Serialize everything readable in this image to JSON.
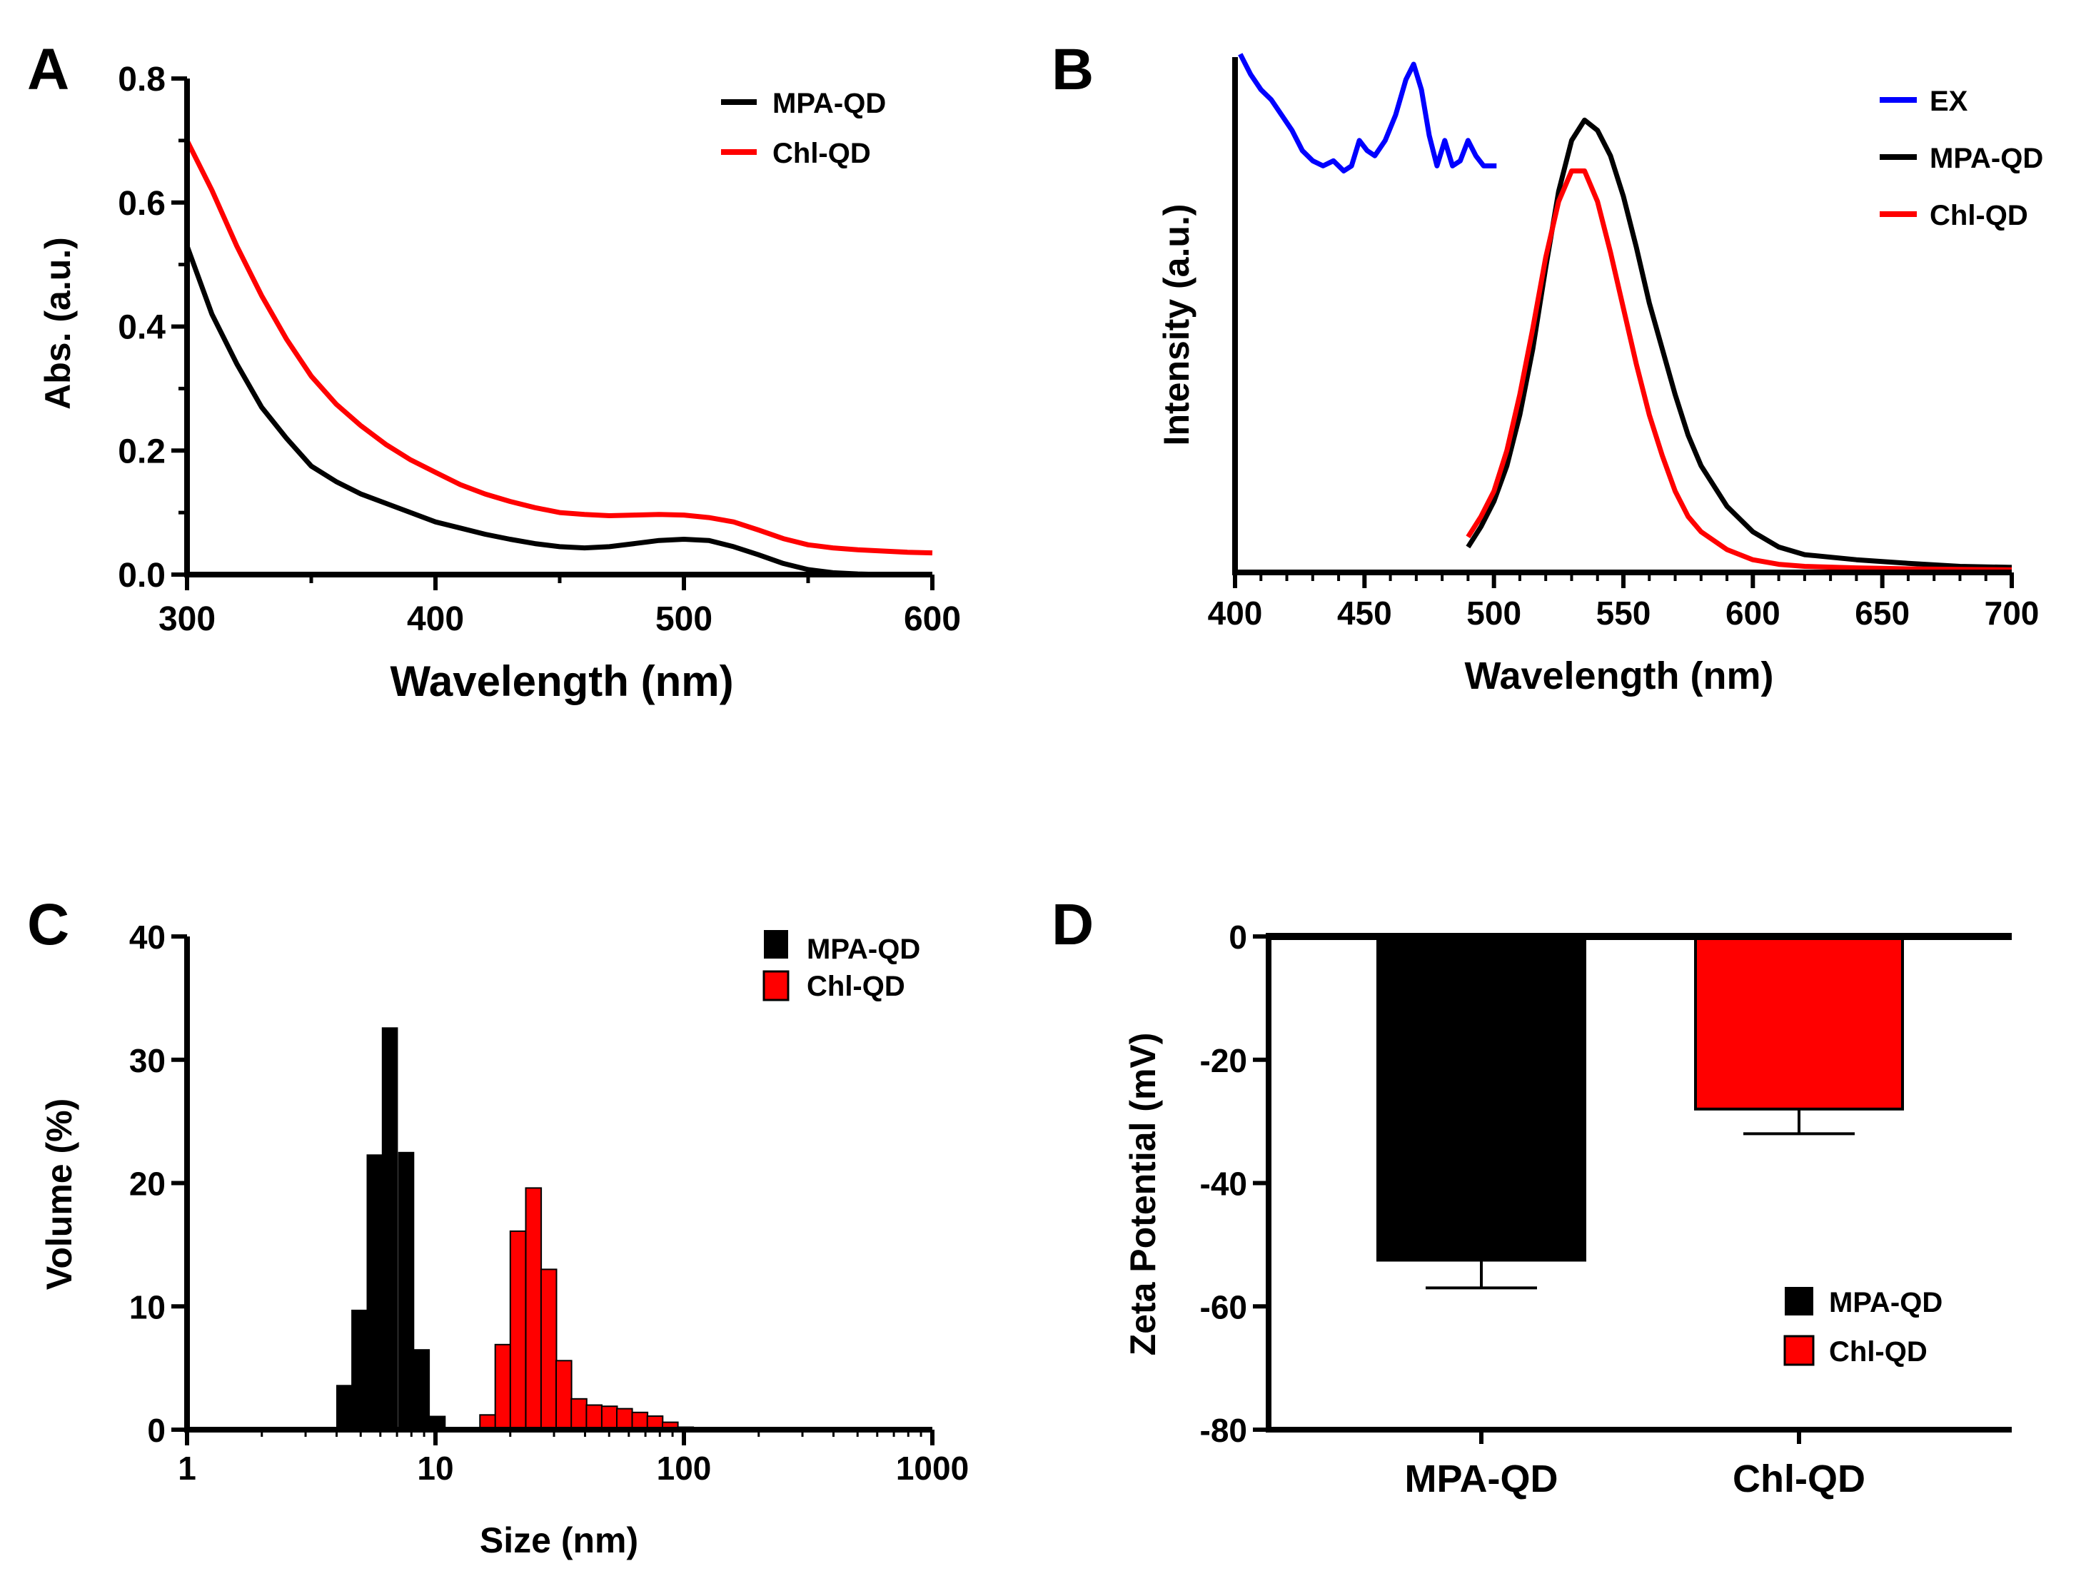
{
  "colors": {
    "black": "#000000",
    "red": "#ff0000",
    "blue": "#0000ff"
  },
  "chart_data": [
    {
      "panel": "A",
      "type": "line",
      "xlabel": "Wavelength (nm)",
      "ylabel": "Abs. (a.u.)",
      "xlim": [
        300,
        600
      ],
      "ylim": [
        0,
        0.8
      ],
      "xticks": [
        300,
        400,
        500,
        600
      ],
      "yticks": [
        "0.0",
        "0.2",
        "0.4",
        "0.6",
        "0.8"
      ],
      "legend": "top-right",
      "series": [
        {
          "name": "MPA-QD",
          "color": "#000000",
          "x": [
            300,
            310,
            320,
            330,
            340,
            350,
            360,
            370,
            380,
            390,
            400,
            410,
            420,
            430,
            440,
            450,
            460,
            470,
            480,
            490,
            500,
            510,
            520,
            530,
            540,
            550,
            560,
            570,
            580,
            590,
            600
          ],
          "y": [
            0.53,
            0.42,
            0.34,
            0.27,
            0.22,
            0.175,
            0.15,
            0.13,
            0.115,
            0.1,
            0.085,
            0.075,
            0.065,
            0.057,
            0.05,
            0.045,
            0.043,
            0.045,
            0.05,
            0.055,
            0.057,
            0.055,
            0.045,
            0.032,
            0.018,
            0.008,
            0.003,
            0.001,
            0.0,
            0.0,
            0.0
          ]
        },
        {
          "name": "Chl-QD",
          "color": "#ff0000",
          "x": [
            300,
            310,
            320,
            330,
            340,
            350,
            360,
            370,
            380,
            390,
            400,
            410,
            420,
            430,
            440,
            450,
            460,
            470,
            480,
            490,
            500,
            510,
            520,
            530,
            540,
            550,
            560,
            570,
            580,
            590,
            600
          ],
          "y": [
            0.7,
            0.62,
            0.53,
            0.45,
            0.38,
            0.32,
            0.275,
            0.24,
            0.21,
            0.185,
            0.165,
            0.145,
            0.13,
            0.118,
            0.108,
            0.1,
            0.097,
            0.095,
            0.096,
            0.097,
            0.096,
            0.092,
            0.085,
            0.072,
            0.058,
            0.048,
            0.043,
            0.04,
            0.038,
            0.036,
            0.035
          ]
        }
      ]
    },
    {
      "panel": "B",
      "type": "line",
      "xlabel": "Wavelength (nm)",
      "ylabel": "Intensity (a.u.)",
      "xlim": [
        400,
        700
      ],
      "ylim": [
        0,
        1
      ],
      "xticks": [
        400,
        450,
        500,
        550,
        600,
        650,
        700
      ],
      "yticks": [],
      "legend": "top-right",
      "series": [
        {
          "name": "EX",
          "color": "#0000ff",
          "x": [
            402,
            406,
            410,
            414,
            418,
            422,
            426,
            430,
            434,
            438,
            442,
            445,
            448,
            451,
            454,
            458,
            462,
            466,
            469,
            472,
            475,
            478,
            481,
            484,
            487,
            490,
            493,
            496,
            499,
            501
          ],
          "y": [
            1.02,
            0.98,
            0.95,
            0.93,
            0.9,
            0.87,
            0.83,
            0.81,
            0.8,
            0.81,
            0.79,
            0.8,
            0.85,
            0.83,
            0.82,
            0.85,
            0.9,
            0.97,
            1.0,
            0.95,
            0.86,
            0.8,
            0.85,
            0.8,
            0.81,
            0.85,
            0.82,
            0.8,
            0.8,
            0.8
          ]
        },
        {
          "name": "MPA-QD",
          "color": "#000000",
          "x": [
            490,
            495,
            500,
            505,
            510,
            515,
            520,
            525,
            530,
            535,
            540,
            545,
            550,
            555,
            560,
            565,
            570,
            575,
            580,
            590,
            600,
            610,
            620,
            640,
            660,
            680,
            700
          ],
          "y": [
            0.05,
            0.09,
            0.14,
            0.21,
            0.31,
            0.44,
            0.6,
            0.75,
            0.85,
            0.89,
            0.87,
            0.82,
            0.74,
            0.64,
            0.53,
            0.44,
            0.35,
            0.27,
            0.21,
            0.13,
            0.08,
            0.05,
            0.035,
            0.025,
            0.018,
            0.012,
            0.01
          ]
        },
        {
          "name": "Chl-QD",
          "color": "#ff0000",
          "x": [
            490,
            495,
            500,
            505,
            510,
            515,
            520,
            525,
            530,
            535,
            540,
            545,
            550,
            555,
            560,
            565,
            570,
            575,
            580,
            590,
            600,
            610,
            620,
            640,
            660,
            680,
            700
          ],
          "y": [
            0.07,
            0.11,
            0.16,
            0.24,
            0.35,
            0.48,
            0.62,
            0.73,
            0.79,
            0.79,
            0.73,
            0.63,
            0.52,
            0.41,
            0.31,
            0.23,
            0.16,
            0.11,
            0.08,
            0.045,
            0.025,
            0.016,
            0.012,
            0.009,
            0.007,
            0.006,
            0.005
          ]
        }
      ]
    },
    {
      "panel": "C",
      "type": "bar",
      "xlabel": "Size (nm)",
      "ylabel": "Volume (%)",
      "xscale": "log",
      "xlim": [
        1,
        1000
      ],
      "ylim": [
        0,
        40
      ],
      "xticks": [
        "1",
        "10",
        "100",
        "1000"
      ],
      "yticks": [
        "0",
        "10",
        "20",
        "30",
        "40"
      ],
      "legend": "top-right",
      "series": [
        {
          "name": "MPA-QD",
          "color": "#000000",
          "x": [
            3.5,
            4.0,
            4.6,
            5.3,
            6.1,
            7.1,
            8.2,
            9.5
          ],
          "values": [
            0.2,
            3.6,
            9.7,
            22.3,
            32.6,
            22.5,
            6.5,
            1.1
          ]
        },
        {
          "name": "Chl-QD",
          "color": "#ff0000",
          "x": [
            15.1,
            17.4,
            20.0,
            23.1,
            26.6,
            30.6,
            35.2,
            40.5,
            46.7,
            53.7,
            61.9,
            71.2,
            82.0,
            94.5
          ],
          "values": [
            1.2,
            6.9,
            16.1,
            19.6,
            13.0,
            5.6,
            2.5,
            2.0,
            1.9,
            1.7,
            1.4,
            1.1,
            0.6,
            0.2
          ]
        }
      ]
    },
    {
      "panel": "D",
      "type": "bar",
      "xlabel": "",
      "ylabel": "Zeta Potential (mV)",
      "ylim": [
        -80,
        0
      ],
      "yticks": [
        "0",
        "-20",
        "-40",
        "-60",
        "-80"
      ],
      "categories": [
        "MPA-QD",
        "Chl-QD"
      ],
      "legend": "bottom-right",
      "series": [
        {
          "name": "MPA-QD",
          "color": "#000000",
          "value": -52.5,
          "error": 4.5
        },
        {
          "name": "Chl-QD",
          "color": "#ff0000",
          "value": -28.0,
          "error": 4.0
        }
      ]
    }
  ]
}
